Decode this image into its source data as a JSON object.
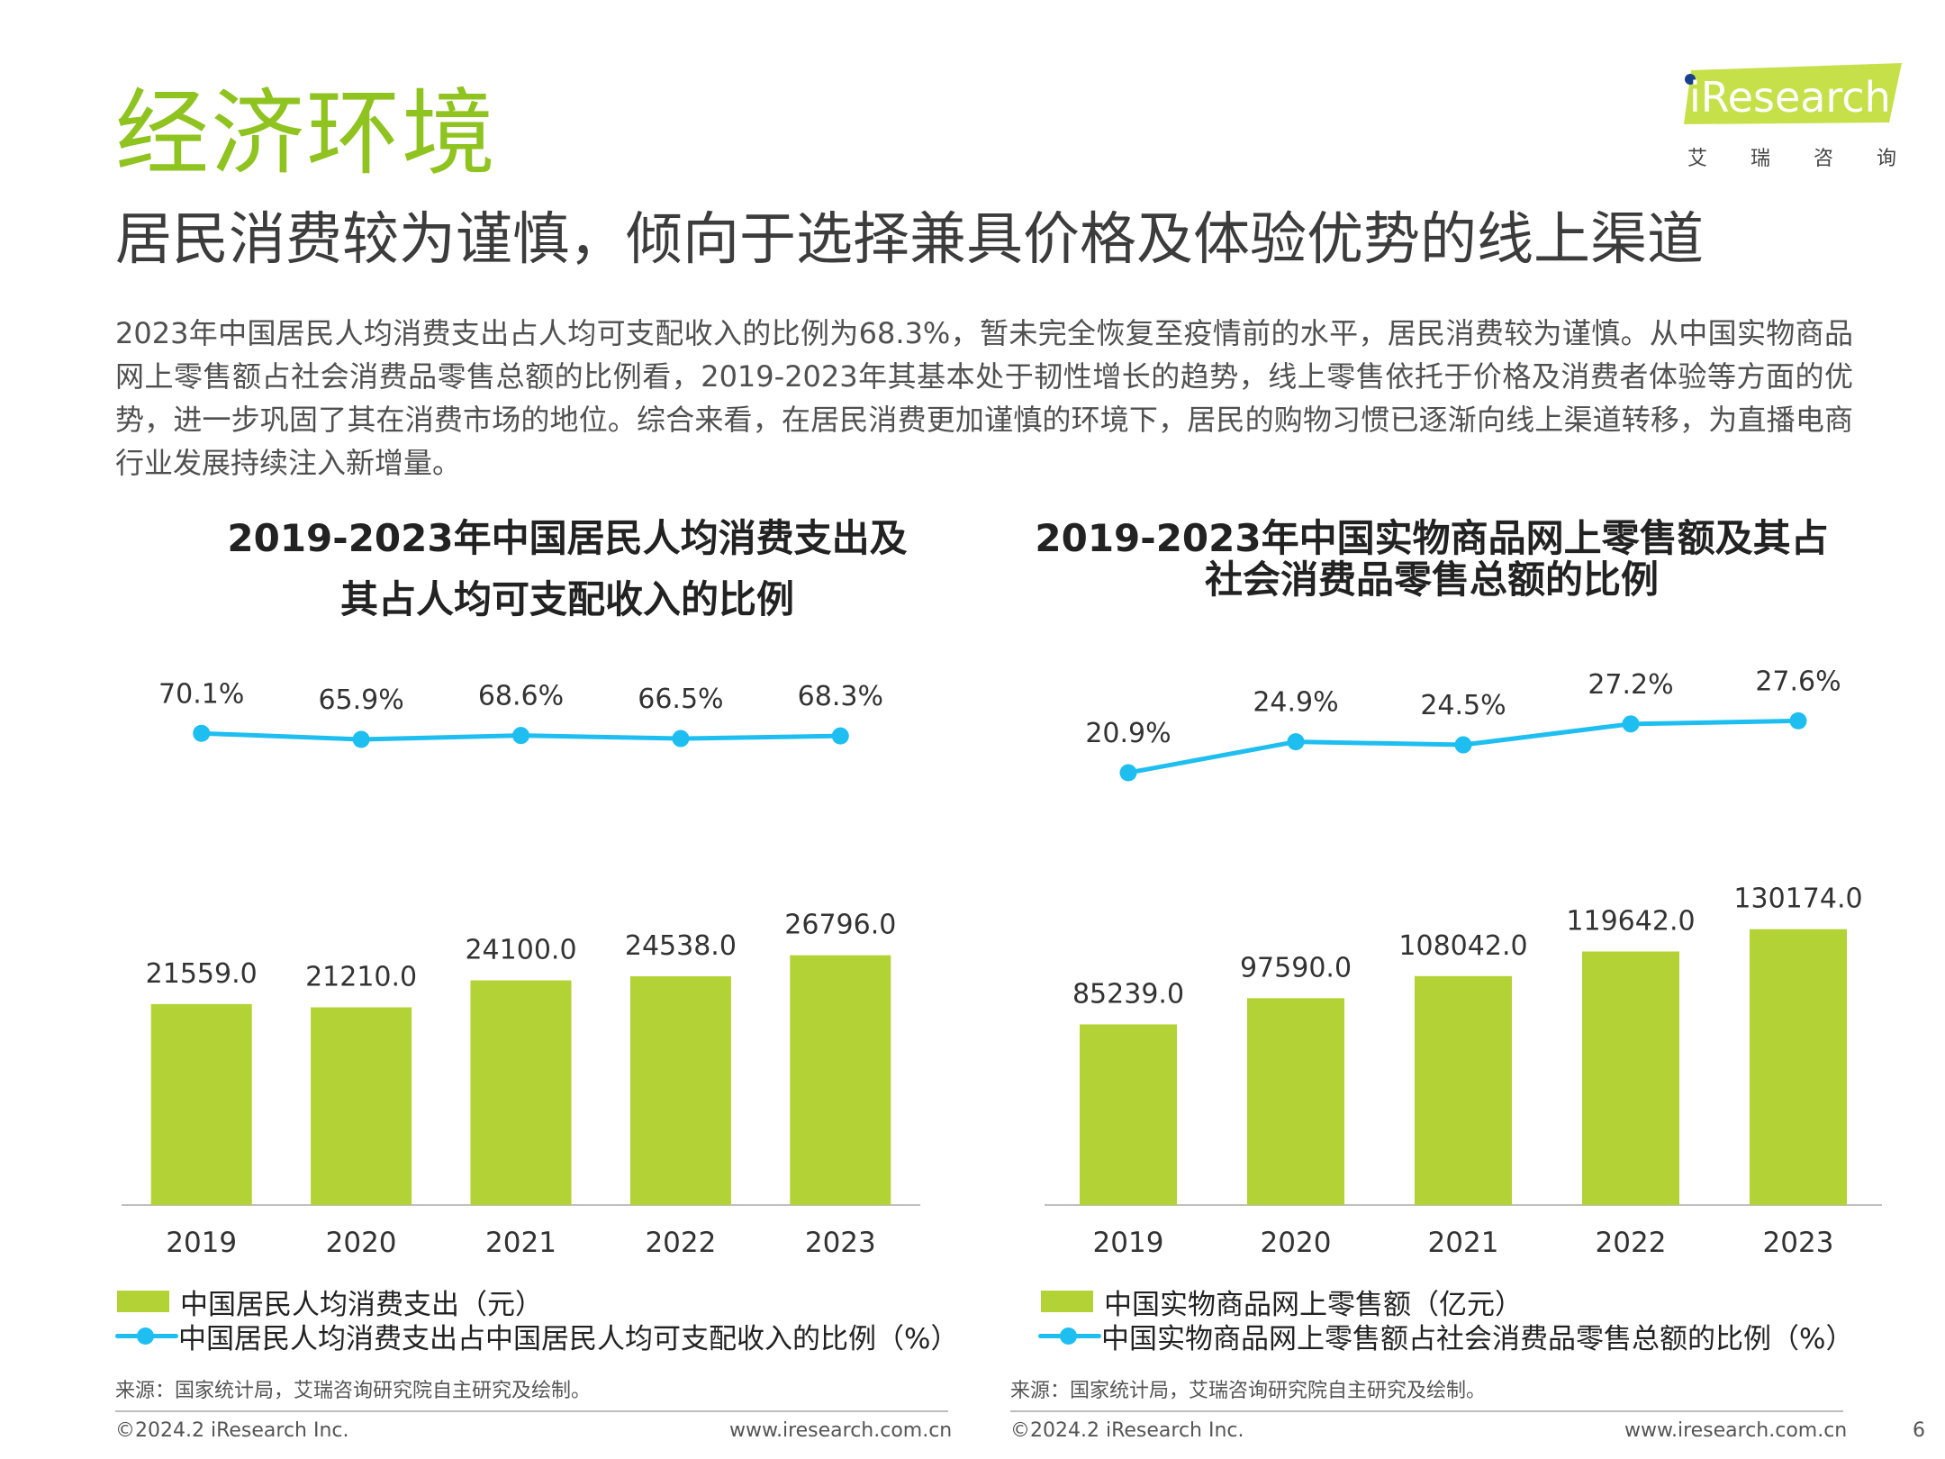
{
  "page": {
    "section_title": "经济环境",
    "headline": "居民消费较为谨慎，倾向于选择兼具价格及体验优势的线上渠道",
    "intro": "2023年中国居民人均消费支出占人均可支配收入的比例为68.3%，暂未完全恢复至疫情前的水平，居民消费较为谨慎。从中国实物商品网上零售额占社会消费品零售总额的比例看，2019-2023年其基本处于韧性增长的趋势，线上零售依托于价格及消费者体验等方面的优势，进一步巩固了其在消费市场的地位。综合来看，在居民消费更加谨慎的环境下，居民的购物习惯已逐渐向线上渠道转移，为直播电商行业发展持续注入新增量。",
    "page_number": "6"
  },
  "logo": {
    "brand": "iResearch",
    "cn_chars": [
      "艾",
      "瑞",
      "咨",
      "询"
    ]
  },
  "colors": {
    "title_green": "#8fc31f",
    "bar_green": "#b2d235",
    "line_blue": "#1ebef0"
  },
  "chart_data": [
    {
      "type": "bar",
      "title_line1": "2019-2023年中国居民人均消费支出及",
      "title_line2": "其占人均可支配收入的比例",
      "categories": [
        "2019",
        "2020",
        "2021",
        "2022",
        "2023"
      ],
      "series": [
        {
          "name": "中国居民人均消费支出（元）",
          "type": "bar",
          "values": [
            21559.0,
            21210.0,
            24100.0,
            24538.0,
            26796.0
          ],
          "labels": [
            "21559.0",
            "21210.0",
            "24100.0",
            "24538.0",
            "26796.0"
          ]
        },
        {
          "name": "中国居民人均消费支出占中国居民人均可支配收入的比例（%）",
          "type": "line",
          "values": [
            70.1,
            65.9,
            68.6,
            66.5,
            68.3
          ],
          "labels": [
            "70.1%",
            "65.9%",
            "68.6%",
            "66.5%",
            "68.3%"
          ]
        }
      ],
      "source": "来源：国家统计局，艾瑞咨询研究院自主研究及绘制。",
      "footer_left": "©2024.2 iResearch Inc.",
      "footer_right": "www.iresearch.com.cn"
    },
    {
      "type": "bar",
      "title_line1": "2019-2023年中国实物商品网上零售额及其占",
      "title_line2": "社会消费品零售总额的比例",
      "categories": [
        "2019",
        "2020",
        "2021",
        "2022",
        "2023"
      ],
      "series": [
        {
          "name": "中国实物商品网上零售额（亿元）",
          "type": "bar",
          "values": [
            85239.0,
            97590.0,
            108042.0,
            119642.0,
            130174.0
          ],
          "labels": [
            "85239.0",
            "97590.0",
            "108042.0",
            "119642.0",
            "130174.0"
          ]
        },
        {
          "name": "中国实物商品网上零售额占社会消费品零售总额的比例（%）",
          "type": "line",
          "values": [
            20.9,
            24.9,
            24.5,
            27.2,
            27.6
          ],
          "labels": [
            "20.9%",
            "24.9%",
            "24.5%",
            "27.2%",
            "27.6%"
          ]
        }
      ],
      "source": "来源：国家统计局，艾瑞咨询研究院自主研究及绘制。",
      "footer_left": "©2024.2 iResearch Inc.",
      "footer_right": "www.iresearch.com.cn"
    }
  ]
}
